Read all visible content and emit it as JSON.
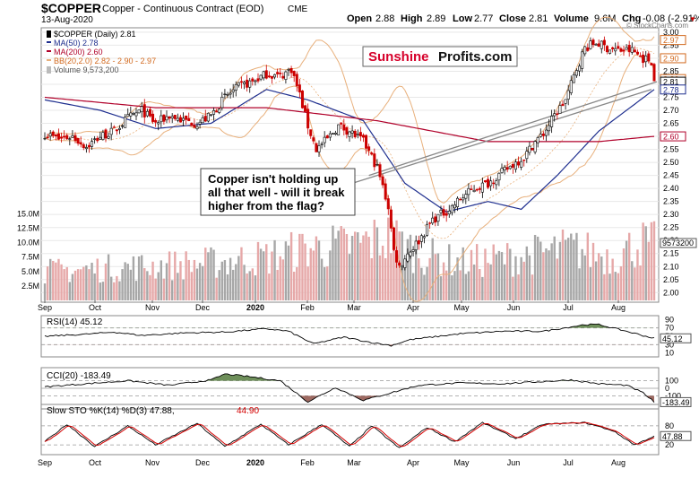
{
  "header": {
    "symbol": "$COPPER",
    "name": "Copper - Continuous Contract (EOD)",
    "exchange": "CME",
    "date": "13-Aug-2020",
    "open_label": "Open",
    "open": "2.88",
    "high_label": "High",
    "high": "2.89",
    "low_label": "Low",
    "low": "2.77",
    "close_label": "Close",
    "close": "2.81",
    "volume_label": "Volume",
    "volume": "9.6M",
    "chg_label": "Chg",
    "chg": "-0.08 (-2.91%)",
    "chg_arrow": "▼",
    "credit": "© StockCharts.com"
  },
  "legend": [
    {
      "text": "$COPPER (Daily) 2.81",
      "color": "#000000"
    },
    {
      "text": "MA(50) 2.78",
      "color": "#1f2f8f"
    },
    {
      "text": "MA(200) 2.60",
      "color": "#b0002a"
    },
    {
      "text": "BB(20,2.0) 2.82 - 2.90 - 2.97",
      "color": "#d2691e"
    },
    {
      "text": "Volume 9,573,200",
      "color": "#555555"
    }
  ],
  "logo": {
    "part1": "Sunshine",
    "part2": "Profits.com"
  },
  "annotation": [
    "Copper isn't holding up",
    "all that well - will it break",
    "higher from the flag?"
  ],
  "x_labels": [
    "Sep",
    "Oct",
    "Nov",
    "Dec",
    "2020",
    "Feb",
    "Mar",
    "Apr",
    "May",
    "Jun",
    "Jul",
    "Aug"
  ],
  "chart_data": {
    "type": "candlestick",
    "price_axis": [
      "3.00",
      "2.95",
      "2.90",
      "2.85",
      "2.80",
      "2.75",
      "2.70",
      "2.65",
      "2.60",
      "2.55",
      "2.50",
      "2.45",
      "2.40",
      "2.35",
      "2.30",
      "2.25",
      "2.20",
      "2.15",
      "2.10",
      "2.05",
      "2.00"
    ],
    "price_ylim": [
      1.97,
      3.01
    ],
    "price_tags": [
      {
        "text": "2.97",
        "value": 2.97,
        "color": "#d2691e"
      },
      {
        "text": "2.90",
        "value": 2.9,
        "color": "#d2691e"
      },
      {
        "text": "2.82",
        "value": 2.82,
        "color": "#d2691e"
      },
      {
        "text": "2.81",
        "value": 2.81,
        "color": "#000000"
      },
      {
        "text": "2.78",
        "value": 2.78,
        "color": "#1f2f8f"
      },
      {
        "text": "2.60",
        "value": 2.6,
        "color": "#b0002a"
      }
    ],
    "close_anchors": [
      [
        0,
        2.61
      ],
      [
        5,
        2.59
      ],
      [
        10,
        2.6
      ],
      [
        15,
        2.56
      ],
      [
        20,
        2.6
      ],
      [
        25,
        2.62
      ],
      [
        30,
        2.67
      ],
      [
        35,
        2.7
      ],
      [
        40,
        2.65
      ],
      [
        45,
        2.68
      ],
      [
        50,
        2.66
      ],
      [
        55,
        2.65
      ],
      [
        60,
        2.68
      ],
      [
        65,
        2.75
      ],
      [
        70,
        2.79
      ],
      [
        75,
        2.81
      ],
      [
        80,
        2.84
      ],
      [
        85,
        2.83
      ],
      [
        89,
        2.86
      ],
      [
        92,
        2.76
      ],
      [
        95,
        2.64
      ],
      [
        98,
        2.55
      ],
      [
        102,
        2.59
      ],
      [
        106,
        2.64
      ],
      [
        110,
        2.62
      ],
      [
        115,
        2.58
      ],
      [
        120,
        2.48
      ],
      [
        124,
        2.33
      ],
      [
        126,
        2.16
      ],
      [
        128,
        2.1
      ],
      [
        131,
        2.15
      ],
      [
        135,
        2.2
      ],
      [
        140,
        2.28
      ],
      [
        146,
        2.32
      ],
      [
        150,
        2.36
      ],
      [
        155,
        2.4
      ],
      [
        160,
        2.42
      ],
      [
        165,
        2.46
      ],
      [
        170,
        2.5
      ],
      [
        173,
        2.52
      ],
      [
        177,
        2.58
      ],
      [
        180,
        2.61
      ],
      [
        184,
        2.68
      ],
      [
        188,
        2.74
      ],
      [
        192,
        2.86
      ],
      [
        195,
        2.94
      ],
      [
        199,
        2.96
      ],
      [
        203,
        2.94
      ],
      [
        207,
        2.93
      ],
      [
        212,
        2.93
      ],
      [
        216,
        2.9
      ],
      [
        219,
        2.89
      ],
      [
        220,
        2.81
      ]
    ],
    "ma50_anchors": [
      [
        0,
        2.74
      ],
      [
        20,
        2.7
      ],
      [
        40,
        2.63
      ],
      [
        60,
        2.65
      ],
      [
        80,
        2.78
      ],
      [
        95,
        2.74
      ],
      [
        115,
        2.66
      ],
      [
        130,
        2.42
      ],
      [
        145,
        2.31
      ],
      [
        160,
        2.35
      ],
      [
        172,
        2.32
      ],
      [
        185,
        2.45
      ],
      [
        200,
        2.62
      ],
      [
        220,
        2.78
      ]
    ],
    "ma200_anchors": [
      [
        0,
        2.75
      ],
      [
        40,
        2.71
      ],
      [
        80,
        2.71
      ],
      [
        120,
        2.66
      ],
      [
        160,
        2.58
      ],
      [
        200,
        2.58
      ],
      [
        220,
        2.6
      ]
    ],
    "volume_axis": [
      "15.0M",
      "12.5M",
      "10.0M",
      "7.5M",
      "5.0M",
      "2.5M"
    ],
    "volume_ylim": [
      0,
      16
    ],
    "volume_tag": "9573200",
    "volume_millions_anchors": [
      [
        0,
        5
      ],
      [
        20,
        5.5
      ],
      [
        40,
        6
      ],
      [
        60,
        6.5
      ],
      [
        80,
        7.5
      ],
      [
        95,
        9
      ],
      [
        110,
        9.5
      ],
      [
        125,
        11
      ],
      [
        135,
        8
      ],
      [
        150,
        6.5
      ],
      [
        170,
        7.5
      ],
      [
        190,
        9
      ],
      [
        205,
        7.5
      ],
      [
        215,
        10
      ],
      [
        220,
        9.6
      ]
    ],
    "trendlines": [
      {
        "from": [
          111,
          2.42
        ],
        "to": [
          219,
          2.78
        ]
      },
      {
        "from": [
          117,
          2.45
        ],
        "to": [
          221,
          2.81
        ]
      }
    ],
    "rsi": {
      "label": "RSI(14) 45.12",
      "value_tag": "45.12",
      "axis": [
        "90",
        "70",
        "50",
        "30",
        "10"
      ],
      "levels": [
        70,
        30
      ],
      "ylim": [
        5,
        95
      ],
      "anchors": [
        [
          0,
          50
        ],
        [
          15,
          55
        ],
        [
          25,
          60
        ],
        [
          35,
          52
        ],
        [
          50,
          58
        ],
        [
          65,
          60
        ],
        [
          80,
          68
        ],
        [
          88,
          62
        ],
        [
          97,
          32
        ],
        [
          108,
          48
        ],
        [
          118,
          35
        ],
        [
          125,
          28
        ],
        [
          132,
          42
        ],
        [
          150,
          56
        ],
        [
          165,
          62
        ],
        [
          180,
          62
        ],
        [
          195,
          78
        ],
        [
          200,
          78
        ],
        [
          210,
          62
        ],
        [
          220,
          45
        ]
      ]
    },
    "cci": {
      "label": "CCI(20) -183.49",
      "value_tag": "-183.49",
      "axis": [
        "100",
        "0",
        "-100"
      ],
      "levels": [
        100,
        0,
        -100
      ],
      "ylim": [
        -250,
        250
      ],
      "anchors": [
        [
          0,
          20
        ],
        [
          15,
          60
        ],
        [
          30,
          100
        ],
        [
          45,
          40
        ],
        [
          60,
          110
        ],
        [
          65,
          190
        ],
        [
          75,
          150
        ],
        [
          85,
          100
        ],
        [
          95,
          -180
        ],
        [
          105,
          10
        ],
        [
          115,
          -160
        ],
        [
          125,
          -60
        ],
        [
          135,
          40
        ],
        [
          150,
          70
        ],
        [
          165,
          60
        ],
        [
          180,
          90
        ],
        [
          190,
          110
        ],
        [
          200,
          60
        ],
        [
          210,
          40
        ],
        [
          216,
          -60
        ],
        [
          220,
          -183
        ]
      ]
    },
    "stoch": {
      "label": "Slow STO %K(14) %D(3) 47.88, 44.90",
      "label_k": "Slow STO %K(14) %D(3) 47.88,",
      "label_d": "44.90",
      "value_tag": "47.88",
      "axis": [
        "80",
        "20"
      ],
      "levels": [
        80,
        20
      ],
      "ylim": [
        -5,
        105
      ],
      "anchors": [
        [
          0,
          30
        ],
        [
          8,
          85
        ],
        [
          18,
          15
        ],
        [
          30,
          80
        ],
        [
          40,
          20
        ],
        [
          55,
          88
        ],
        [
          65,
          15
        ],
        [
          78,
          85
        ],
        [
          88,
          20
        ],
        [
          100,
          85
        ],
        [
          110,
          15
        ],
        [
          118,
          80
        ],
        [
          128,
          10
        ],
        [
          138,
          75
        ],
        [
          148,
          30
        ],
        [
          158,
          90
        ],
        [
          170,
          40
        ],
        [
          180,
          85
        ],
        [
          195,
          90
        ],
        [
          205,
          65
        ],
        [
          213,
          20
        ],
        [
          220,
          48
        ]
      ]
    },
    "colors": {
      "bull": "#000000",
      "bear": "#cc0000",
      "ma50": "#1f2f8f",
      "ma200": "#b0002a",
      "bb": "#e8b07c",
      "vol_up": "#a7a7a7",
      "vol_down": "#e6a8a8",
      "osc_pos": "#6e8f5a",
      "osc_neg": "#9e6a62",
      "stoch_k": "#000000",
      "stoch_d": "#d40000",
      "logo_red": "#d6002a"
    }
  }
}
